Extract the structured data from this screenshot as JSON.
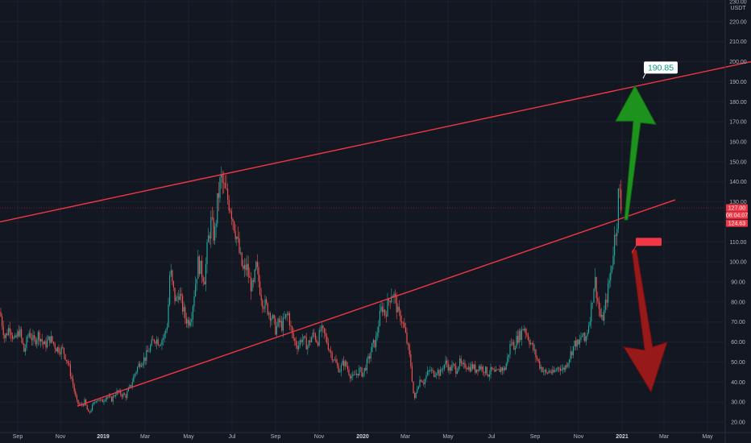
{
  "chart_data": {
    "type": "candlestick",
    "currency_label": "USDT",
    "y_ticks": [
      "20.00",
      "30.00",
      "40.00",
      "50.00",
      "60.00",
      "70.00",
      "80.00",
      "90.00",
      "100.00",
      "110.00",
      "120.00",
      "130.00",
      "140.00",
      "150.00",
      "160.00",
      "170.00",
      "180.00",
      "190.00",
      "200.00",
      "210.00",
      "220.00",
      "230.00"
    ],
    "ylim": [
      18,
      236
    ],
    "x_ticks": [
      "Sep",
      "Nov",
      "2019",
      "Mar",
      "May",
      "Jul",
      "Sep",
      "Nov",
      "2020",
      "Mar",
      "May",
      "Jul",
      "Sep",
      "Nov",
      "2021",
      "Mar",
      "May"
    ],
    "x_tick_bold": [
      "2019",
      "2020",
      "2021"
    ],
    "price_tags": [
      {
        "label": "127.00",
        "value": 127.0,
        "color": "#f23645"
      },
      {
        "label": "08:04:07",
        "value": 123.3,
        "color": "#f23645"
      },
      {
        "label": "124.63",
        "value": 119.3,
        "color": "#f23645"
      }
    ],
    "current_price": 127.0,
    "annotations": [
      {
        "label": "190.85",
        "value": 190.85,
        "color": "#ffffff",
        "text_color": "#089981"
      },
      {
        "label": "",
        "value": 110,
        "color": "#f23645",
        "text_color": "#ffffff"
      }
    ],
    "series_path": [
      [
        0,
        75
      ],
      [
        6,
        62
      ],
      [
        12,
        68
      ],
      [
        18,
        60
      ],
      [
        24,
        66
      ],
      [
        30,
        55
      ],
      [
        36,
        65
      ],
      [
        42,
        60
      ],
      [
        48,
        64
      ],
      [
        55,
        58
      ],
      [
        62,
        62
      ],
      [
        70,
        57
      ],
      [
        78,
        56
      ],
      [
        84,
        50
      ],
      [
        90,
        40
      ],
      [
        95,
        30
      ],
      [
        100,
        28
      ],
      [
        105,
        30
      ],
      [
        110,
        24
      ],
      [
        115,
        28
      ],
      [
        120,
        32
      ],
      [
        126,
        30
      ],
      [
        132,
        33
      ],
      [
        138,
        31
      ],
      [
        144,
        35
      ],
      [
        150,
        34
      ],
      [
        156,
        33
      ],
      [
        162,
        38
      ],
      [
        168,
        45
      ],
      [
        174,
        50
      ],
      [
        180,
        52
      ],
      [
        186,
        57
      ],
      [
        192,
        62
      ],
      [
        198,
        60
      ],
      [
        204,
        63
      ],
      [
        208,
        70
      ],
      [
        211,
        97
      ],
      [
        214,
        88
      ],
      [
        218,
        80
      ],
      [
        222,
        85
      ],
      [
        226,
        78
      ],
      [
        230,
        72
      ],
      [
        234,
        70
      ],
      [
        238,
        75
      ],
      [
        242,
        88
      ],
      [
        246,
        100
      ],
      [
        250,
        95
      ],
      [
        254,
        92
      ],
      [
        258,
        110
      ],
      [
        262,
        120
      ],
      [
        266,
        112
      ],
      [
        270,
        130
      ],
      [
        274,
        142
      ],
      [
        278,
        136
      ],
      [
        282,
        132
      ],
      [
        286,
        128
      ],
      [
        290,
        120
      ],
      [
        294,
        112
      ],
      [
        298,
        102
      ],
      [
        302,
        95
      ],
      [
        306,
        98
      ],
      [
        310,
        90
      ],
      [
        314,
        86
      ],
      [
        318,
        98
      ],
      [
        322,
        88
      ],
      [
        326,
        80
      ],
      [
        330,
        78
      ],
      [
        334,
        75
      ],
      [
        338,
        72
      ],
      [
        342,
        66
      ],
      [
        346,
        70
      ],
      [
        350,
        68
      ],
      [
        354,
        72
      ],
      [
        358,
        74
      ],
      [
        362,
        64
      ],
      [
        366,
        60
      ],
      [
        370,
        58
      ],
      [
        374,
        62
      ],
      [
        378,
        60
      ],
      [
        382,
        58
      ],
      [
        386,
        62
      ],
      [
        390,
        64
      ],
      [
        394,
        60
      ],
      [
        398,
        66
      ],
      [
        402,
        64
      ],
      [
        406,
        60
      ],
      [
        410,
        55
      ],
      [
        414,
        52
      ],
      [
        418,
        48
      ],
      [
        422,
        46
      ],
      [
        426,
        50
      ],
      [
        430,
        48
      ],
      [
        434,
        44
      ],
      [
        438,
        42
      ],
      [
        442,
        44
      ],
      [
        446,
        46
      ],
      [
        450,
        44
      ],
      [
        454,
        48
      ],
      [
        458,
        52
      ],
      [
        462,
        58
      ],
      [
        466,
        60
      ],
      [
        470,
        70
      ],
      [
        474,
        78
      ],
      [
        478,
        74
      ],
      [
        482,
        80
      ],
      [
        486,
        85
      ],
      [
        490,
        82
      ],
      [
        494,
        74
      ],
      [
        498,
        72
      ],
      [
        502,
        66
      ],
      [
        506,
        58
      ],
      [
        510,
        48
      ],
      [
        514,
        30
      ],
      [
        518,
        38
      ],
      [
        522,
        42
      ],
      [
        526,
        40
      ],
      [
        530,
        44
      ],
      [
        534,
        46
      ],
      [
        538,
        44
      ],
      [
        542,
        46
      ],
      [
        546,
        44
      ],
      [
        550,
        48
      ],
      [
        554,
        50
      ],
      [
        558,
        46
      ],
      [
        562,
        48
      ],
      [
        566,
        46
      ],
      [
        570,
        50
      ],
      [
        574,
        47
      ],
      [
        578,
        49
      ],
      [
        582,
        47
      ],
      [
        586,
        48
      ],
      [
        590,
        46
      ],
      [
        594,
        48
      ],
      [
        598,
        47
      ],
      [
        602,
        46
      ],
      [
        606,
        44
      ],
      [
        610,
        46
      ],
      [
        614,
        44
      ],
      [
        618,
        45
      ],
      [
        622,
        47
      ],
      [
        626,
        46
      ],
      [
        630,
        52
      ],
      [
        634,
        60
      ],
      [
        638,
        58
      ],
      [
        642,
        62
      ],
      [
        646,
        64
      ],
      [
        650,
        68
      ],
      [
        654,
        64
      ],
      [
        658,
        60
      ],
      [
        662,
        56
      ],
      [
        666,
        52
      ],
      [
        670,
        48
      ],
      [
        674,
        46
      ],
      [
        678,
        44
      ],
      [
        682,
        46
      ],
      [
        686,
        44
      ],
      [
        690,
        46
      ],
      [
        694,
        48
      ],
      [
        698,
        46
      ],
      [
        702,
        48
      ],
      [
        706,
        52
      ],
      [
        710,
        56
      ],
      [
        714,
        60
      ],
      [
        718,
        58
      ],
      [
        722,
        64
      ],
      [
        726,
        60
      ],
      [
        730,
        68
      ],
      [
        734,
        78
      ],
      [
        738,
        92
      ],
      [
        742,
        80
      ],
      [
        746,
        70
      ],
      [
        750,
        75
      ],
      [
        754,
        85
      ],
      [
        758,
        95
      ],
      [
        762,
        110
      ],
      [
        766,
        122
      ],
      [
        768,
        138
      ],
      [
        770,
        128
      ],
      [
        772,
        124
      ]
    ],
    "trend_lines": [
      {
        "name": "upper",
        "x1": 0,
        "y1": 120,
        "x2": 932,
        "y2": 200,
        "color": "#f23645"
      },
      {
        "name": "lower",
        "x1": 96,
        "y1": 28,
        "x2": 838,
        "y2": 131,
        "color": "#f23645"
      }
    ],
    "arrows": [
      {
        "direction": "up",
        "color": "#1e9e1e",
        "from_value": 121,
        "to_value": 188,
        "target_x": 788
      },
      {
        "direction": "down",
        "color": "#a31a1a",
        "from_value": 106,
        "to_value": 35,
        "target_x": 806
      }
    ],
    "grid": true
  }
}
